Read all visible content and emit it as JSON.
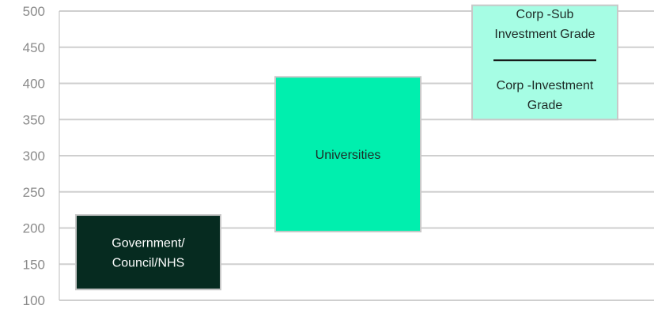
{
  "chart_data": {
    "type": "bar",
    "subtype": "floating-range",
    "title": "",
    "xlabel": "",
    "ylabel": "",
    "ylim": [
      100,
      500
    ],
    "yticks": [
      100,
      150,
      200,
      250,
      300,
      350,
      400,
      450,
      500
    ],
    "grid": true,
    "legend": "none",
    "bars": [
      {
        "label_lines": [
          "Government/",
          "Council/NHS"
        ],
        "low": 115,
        "high": 218,
        "fill": "#062b20",
        "text_color": "#ffffff"
      },
      {
        "label_lines": [
          "Universities"
        ],
        "low": 195,
        "high": 409,
        "fill": "#00efae",
        "text_color": "#1e2a26"
      },
      {
        "label_lines": [],
        "low": 350,
        "high": 508,
        "fill": "#a6fde4",
        "text_color": "#1e2a26",
        "divider_value": 432,
        "top_label_lines": [
          "Corp -Sub",
          "Investment Grade"
        ],
        "bottom_label_lines": [
          "Corp -Investment",
          "Grade"
        ]
      }
    ]
  },
  "colors": {
    "gridline": "#cfcfcf",
    "axis_line": "#bdbdbd",
    "bar_border": "#c8c8c8",
    "tick_text": "#8a8a8a"
  }
}
